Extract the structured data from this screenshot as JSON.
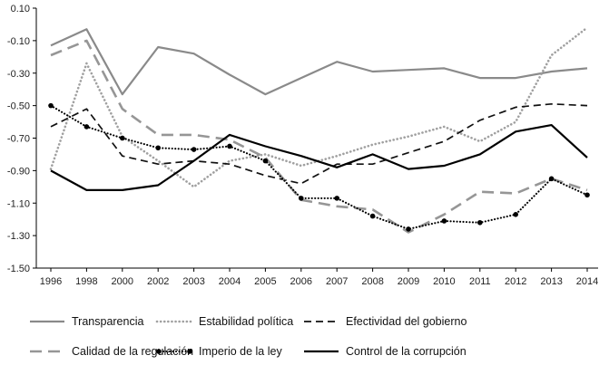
{
  "chart_data": {
    "type": "line",
    "title": "",
    "xlabel": "",
    "ylabel": "",
    "categories": [
      "1996",
      "1998",
      "2000",
      "2002",
      "2003",
      "2004",
      "2005",
      "2006",
      "2007",
      "2008",
      "2009",
      "2010",
      "2011",
      "2012",
      "2013",
      "2014"
    ],
    "ylim": [
      -1.5,
      0.1
    ],
    "yticks": [
      0.1,
      -0.1,
      -0.3,
      -0.5,
      -0.7,
      -0.9,
      -1.1,
      -1.3,
      -1.5
    ],
    "ytick_labels": [
      "0.10",
      "-0.10",
      "-0.30",
      "-0.50",
      "-0.70",
      "-0.90",
      "-1.10",
      "-1.30",
      "-1.50"
    ],
    "grid": false,
    "legend_position": "bottom",
    "series": [
      {
        "name": "Transparencia",
        "color": "#8a8a8a",
        "style": "solid",
        "values": [
          -0.13,
          -0.03,
          -0.43,
          -0.14,
          -0.18,
          -0.31,
          -0.43,
          -0.33,
          -0.23,
          -0.29,
          -0.28,
          -0.27,
          -0.33,
          -0.33,
          -0.29,
          -0.27
        ]
      },
      {
        "name": "Estabilidad política",
        "color": "#a0a0a0",
        "style": "dotted",
        "values": [
          -0.89,
          -0.24,
          -0.69,
          -0.84,
          -1.0,
          -0.84,
          -0.8,
          -0.87,
          -0.81,
          -0.74,
          -0.69,
          -0.63,
          -0.72,
          -0.6,
          -0.19,
          -0.02
        ]
      },
      {
        "name": "Efectividad del gobierno",
        "color": "#111111",
        "style": "dashed",
        "values": [
          -0.63,
          -0.52,
          -0.81,
          -0.86,
          -0.84,
          -0.86,
          -0.93,
          -0.98,
          -0.86,
          -0.86,
          -0.79,
          -0.72,
          -0.59,
          -0.51,
          -0.49,
          -0.5
        ]
      },
      {
        "name": "Calidad de la regulación",
        "color": "#969696",
        "style": "longdash",
        "values": [
          -0.19,
          -0.1,
          -0.52,
          -0.68,
          -0.68,
          -0.71,
          -0.82,
          -1.08,
          -1.12,
          -1.14,
          -1.28,
          -1.17,
          -1.03,
          -1.04,
          -0.95,
          -1.02
        ]
      },
      {
        "name": "Imperio de la ley",
        "color": "#000000",
        "style": "dotted-markers",
        "values": [
          -0.5,
          -0.63,
          -0.7,
          -0.76,
          -0.77,
          -0.75,
          -0.84,
          -1.07,
          -1.07,
          -1.18,
          -1.26,
          -1.21,
          -1.22,
          -1.17,
          -0.95,
          -1.05
        ]
      },
      {
        "name": "Control de la corrupción",
        "color": "#000000",
        "style": "solid",
        "values": [
          -0.9,
          -1.02,
          -1.02,
          -0.99,
          -0.84,
          -0.68,
          -0.75,
          -0.81,
          -0.88,
          -0.8,
          -0.89,
          -0.87,
          -0.8,
          -0.66,
          -0.62,
          -0.82
        ]
      }
    ]
  }
}
